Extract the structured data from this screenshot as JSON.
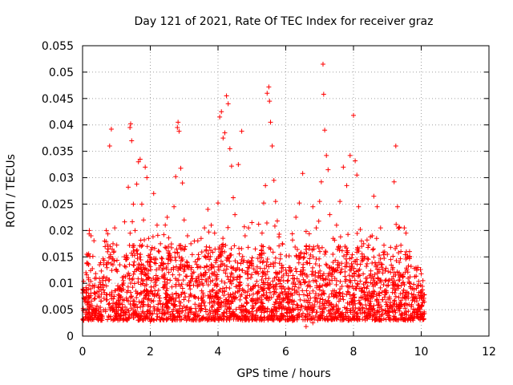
{
  "chart_data": {
    "type": "scatter",
    "title": "Day 121 of 2021, Rate Of TEC Index for receiver graz",
    "xlabel": "GPS time / hours",
    "ylabel": "ROTI / TECUs",
    "xlim": [
      0,
      12
    ],
    "ylim": [
      0,
      0.055
    ],
    "xticks": [
      0,
      2,
      4,
      6,
      8,
      10,
      12
    ],
    "yticks": [
      0,
      0.005,
      0.01,
      0.015,
      0.02,
      0.025,
      0.03,
      0.035,
      0.04,
      0.045,
      0.05,
      0.055
    ],
    "xtick_labels": [
      "0",
      "2",
      "4",
      "6",
      "8",
      "10",
      "12"
    ],
    "ytick_labels": [
      "0",
      "0.005",
      "0.01",
      "0.015",
      "0.02",
      "0.025",
      "0.03",
      "0.035",
      "0.04",
      "0.045",
      "0.05",
      "0.055"
    ],
    "grid": true,
    "marker": "plus",
    "color": "#ff0000",
    "data_x_range": [
      0,
      10.1
    ],
    "series": [
      {
        "name": "ROTI",
        "points": [
          [
            0.05,
            0.0085
          ],
          [
            0.1,
            0.012
          ],
          [
            0.15,
            0.0065
          ],
          [
            0.2,
            0.02
          ],
          [
            0.25,
            0.019
          ],
          [
            0.3,
            0.0095
          ],
          [
            0.35,
            0.007
          ],
          [
            0.4,
            0.011
          ],
          [
            0.5,
            0.0135
          ],
          [
            0.55,
            0.004
          ],
          [
            0.6,
            0.0105
          ],
          [
            0.65,
            0.018
          ],
          [
            0.7,
            0.02
          ],
          [
            0.75,
            0.0165
          ],
          [
            0.8,
            0.036
          ],
          [
            0.85,
            0.0392
          ],
          [
            0.9,
            0.0175
          ],
          [
            0.95,
            0.0205
          ],
          [
            1.0,
            0.0125
          ],
          [
            1.05,
            0.0078
          ],
          [
            1.1,
            0.0135
          ],
          [
            1.2,
            0.0105
          ],
          [
            1.3,
            0.0145
          ],
          [
            1.35,
            0.0282
          ],
          [
            1.4,
            0.0395
          ],
          [
            1.42,
            0.0402
          ],
          [
            1.45,
            0.037
          ],
          [
            1.5,
            0.025
          ],
          [
            1.55,
            0.02
          ],
          [
            1.6,
            0.0288
          ],
          [
            1.65,
            0.033
          ],
          [
            1.7,
            0.0335
          ],
          [
            1.75,
            0.025
          ],
          [
            1.8,
            0.022
          ],
          [
            1.85,
            0.032
          ],
          [
            1.9,
            0.03
          ],
          [
            1.95,
            0.0185
          ],
          [
            2.0,
            0.0155
          ],
          [
            2.1,
            0.027
          ],
          [
            2.2,
            0.021
          ],
          [
            2.3,
            0.0175
          ],
          [
            2.4,
            0.0192
          ],
          [
            2.5,
            0.0225
          ],
          [
            2.6,
            0.015
          ],
          [
            2.7,
            0.0245
          ],
          [
            2.75,
            0.0302
          ],
          [
            2.8,
            0.0395
          ],
          [
            2.82,
            0.0405
          ],
          [
            2.85,
            0.0388
          ],
          [
            2.9,
            0.0318
          ],
          [
            2.95,
            0.029
          ],
          [
            3.0,
            0.022
          ],
          [
            3.1,
            0.019
          ],
          [
            3.2,
            0.0175
          ],
          [
            3.3,
            0.018
          ],
          [
            3.4,
            0.0145
          ],
          [
            3.5,
            0.0185
          ],
          [
            3.6,
            0.0205
          ],
          [
            3.7,
            0.024
          ],
          [
            3.8,
            0.021
          ],
          [
            3.9,
            0.0195
          ],
          [
            4.0,
            0.0252
          ],
          [
            4.05,
            0.0415
          ],
          [
            4.1,
            0.0425
          ],
          [
            4.15,
            0.0375
          ],
          [
            4.2,
            0.0385
          ],
          [
            4.25,
            0.0455
          ],
          [
            4.3,
            0.044
          ],
          [
            4.35,
            0.0355
          ],
          [
            4.4,
            0.0322
          ],
          [
            4.45,
            0.0262
          ],
          [
            4.5,
            0.023
          ],
          [
            4.6,
            0.0325
          ],
          [
            4.7,
            0.0388
          ],
          [
            4.8,
            0.019
          ],
          [
            4.9,
            0.0205
          ],
          [
            5.0,
            0.0215
          ],
          [
            5.1,
            0.0165
          ],
          [
            5.2,
            0.0212
          ],
          [
            5.3,
            0.0195
          ],
          [
            5.35,
            0.0252
          ],
          [
            5.4,
            0.0285
          ],
          [
            5.45,
            0.046
          ],
          [
            5.5,
            0.0472
          ],
          [
            5.52,
            0.0445
          ],
          [
            5.55,
            0.0405
          ],
          [
            5.6,
            0.036
          ],
          [
            5.65,
            0.0295
          ],
          [
            5.7,
            0.0255
          ],
          [
            5.75,
            0.0218
          ],
          [
            5.8,
            0.0188
          ],
          [
            5.9,
            0.0175
          ],
          [
            6.0,
            0.0125
          ],
          [
            6.1,
            0.0152
          ],
          [
            6.2,
            0.0182
          ],
          [
            6.3,
            0.0225
          ],
          [
            6.4,
            0.0252
          ],
          [
            6.5,
            0.0308
          ],
          [
            6.6,
            0.0198
          ],
          [
            6.7,
            0.017
          ],
          [
            6.8,
            0.0245
          ],
          [
            6.9,
            0.0205
          ],
          [
            7.0,
            0.0255
          ],
          [
            7.05,
            0.0292
          ],
          [
            7.1,
            0.0515
          ],
          [
            7.12,
            0.0458
          ],
          [
            7.15,
            0.039
          ],
          [
            7.2,
            0.0342
          ],
          [
            7.25,
            0.0315
          ],
          [
            7.3,
            0.023
          ],
          [
            7.4,
            0.0185
          ],
          [
            7.5,
            0.021
          ],
          [
            7.6,
            0.0255
          ],
          [
            7.7,
            0.032
          ],
          [
            7.8,
            0.0285
          ],
          [
            7.9,
            0.0342
          ],
          [
            8.0,
            0.0418
          ],
          [
            8.05,
            0.0332
          ],
          [
            8.1,
            0.0305
          ],
          [
            8.15,
            0.0245
          ],
          [
            8.2,
            0.0202
          ],
          [
            8.3,
            0.0175
          ],
          [
            8.4,
            0.0182
          ],
          [
            8.5,
            0.0188
          ],
          [
            8.6,
            0.0265
          ],
          [
            8.7,
            0.0245
          ],
          [
            8.8,
            0.0205
          ],
          [
            8.9,
            0.0172
          ],
          [
            9.0,
            0.0155
          ],
          [
            9.1,
            0.0145
          ],
          [
            9.2,
            0.0292
          ],
          [
            9.25,
            0.036
          ],
          [
            9.3,
            0.0245
          ],
          [
            9.35,
            0.0205
          ],
          [
            9.4,
            0.0172
          ],
          [
            9.5,
            0.0205
          ],
          [
            9.55,
            0.0195
          ],
          [
            9.6,
            0.0152
          ],
          [
            9.7,
            0.0132
          ],
          [
            9.8,
            0.0128
          ],
          [
            9.9,
            0.013
          ],
          [
            10.0,
            0.0118
          ],
          [
            10.05,
            0.0105
          ],
          [
            0.3,
            0.0042
          ],
          [
            0.9,
            0.003
          ],
          [
            1.5,
            0.0035
          ],
          [
            2.0,
            0.0028
          ],
          [
            2.6,
            0.0033
          ],
          [
            3.2,
            0.0045
          ],
          [
            3.8,
            0.0032
          ],
          [
            4.4,
            0.004
          ],
          [
            5.0,
            0.0038
          ],
          [
            5.6,
            0.0031
          ],
          [
            6.2,
            0.0029
          ],
          [
            6.6,
            0.0018
          ],
          [
            6.8,
            0.0025
          ],
          [
            7.4,
            0.0036
          ],
          [
            8.0,
            0.0034
          ],
          [
            8.6,
            0.0041
          ],
          [
            9.2,
            0.0037
          ],
          [
            9.8,
            0.0046
          ]
        ]
      }
    ]
  }
}
